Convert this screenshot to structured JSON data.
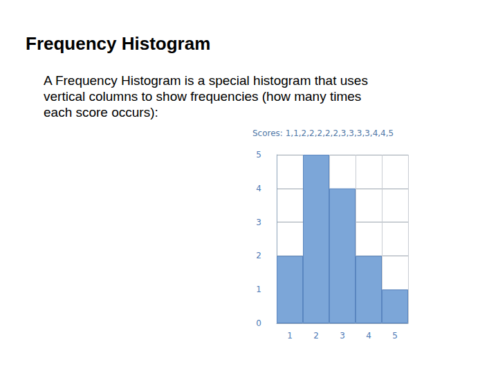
{
  "page": {
    "title": "Frequency Histogram",
    "text_lines": [
      "A Frequency Histogram is a special histogram that uses",
      "vertical columns to show frequencies (how many times",
      "each score occurs):"
    ]
  },
  "chart_data": {
    "type": "bar",
    "title": "Scores: 1,1,2,2,2,2,2,3,3,3,3,4,4,5",
    "categories": [
      "1",
      "2",
      "3",
      "4",
      "5"
    ],
    "values": [
      2,
      5,
      4,
      2,
      1
    ],
    "color": "#7ca6d8",
    "ylim": [
      0,
      5
    ],
    "yticks": [
      0,
      1,
      2,
      3,
      4,
      5
    ],
    "grid": true
  }
}
